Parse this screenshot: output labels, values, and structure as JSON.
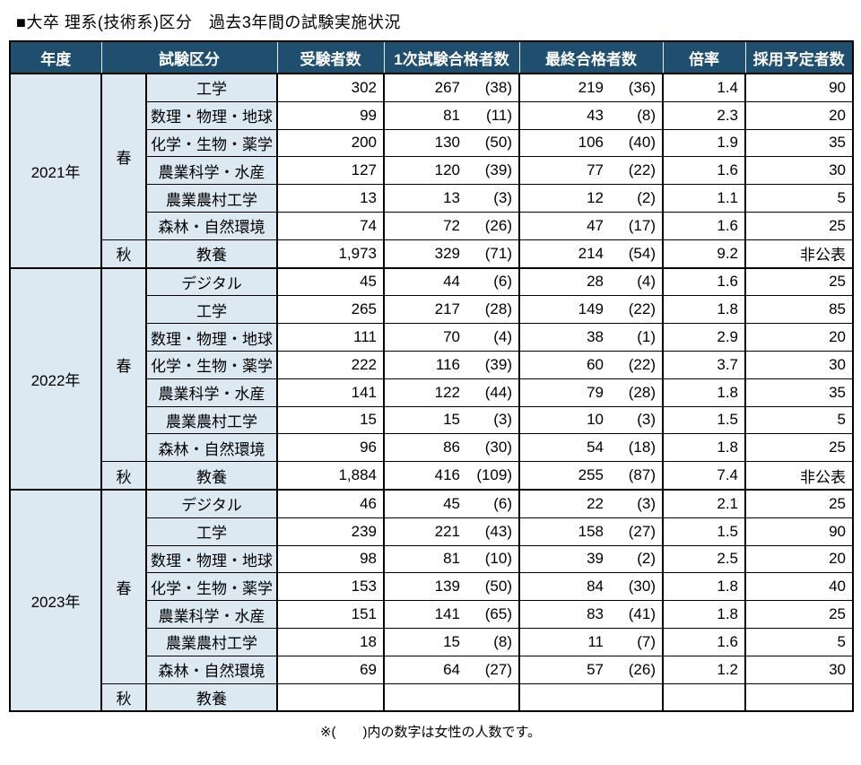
{
  "title": "■大卒 理系(技術系)区分　過去3年間の試験実施状況",
  "footnote": "※(　　)内の数字は女性の人数です。",
  "colors": {
    "header_bg": "#1F4E6E",
    "header_text": "#FFFFFF",
    "label_bg": "#DCE9F2",
    "border": "#000000"
  },
  "columns": [
    "年度",
    "試験区分",
    "受験者数",
    "1次試験合格者数",
    "最終合格者数",
    "倍率",
    "採用予定者数"
  ],
  "years": [
    {
      "year": "2021年",
      "blocks": [
        {
          "season": "春",
          "rows": [
            {
              "category": "工学",
              "applicants": "302",
              "first": "267",
              "first_f": "(38)",
              "final": "219",
              "final_f": "(36)",
              "ratio": "1.4",
              "planned": "90"
            },
            {
              "category": "数理・物理・地球",
              "applicants": "99",
              "first": "81",
              "first_f": "(11)",
              "final": "43",
              "final_f": "(8)",
              "ratio": "2.3",
              "planned": "20"
            },
            {
              "category": "化学・生物・薬学",
              "applicants": "200",
              "first": "130",
              "first_f": "(50)",
              "final": "106",
              "final_f": "(40)",
              "ratio": "1.9",
              "planned": "35"
            },
            {
              "category": "農業科学・水産",
              "applicants": "127",
              "first": "120",
              "first_f": "(39)",
              "final": "77",
              "final_f": "(22)",
              "ratio": "1.6",
              "planned": "30"
            },
            {
              "category": "農業農村工学",
              "applicants": "13",
              "first": "13",
              "first_f": "(3)",
              "final": "12",
              "final_f": "(2)",
              "ratio": "1.1",
              "planned": "5"
            },
            {
              "category": "森林・自然環境",
              "applicants": "74",
              "first": "72",
              "first_f": "(26)",
              "final": "47",
              "final_f": "(17)",
              "ratio": "1.6",
              "planned": "25"
            }
          ]
        },
        {
          "season": "秋",
          "rows": [
            {
              "category": "教養",
              "applicants": "1,973",
              "first": "329",
              "first_f": "(71)",
              "final": "214",
              "final_f": "(54)",
              "ratio": "9.2",
              "planned": "非公表"
            }
          ]
        }
      ]
    },
    {
      "year": "2022年",
      "blocks": [
        {
          "season": "春",
          "rows": [
            {
              "category": "デジタル",
              "applicants": "45",
              "first": "44",
              "first_f": "(6)",
              "final": "28",
              "final_f": "(4)",
              "ratio": "1.6",
              "planned": "25"
            },
            {
              "category": "工学",
              "applicants": "265",
              "first": "217",
              "first_f": "(28)",
              "final": "149",
              "final_f": "(22)",
              "ratio": "1.8",
              "planned": "85"
            },
            {
              "category": "数理・物理・地球",
              "applicants": "111",
              "first": "70",
              "first_f": "(4)",
              "final": "38",
              "final_f": "(1)",
              "ratio": "2.9",
              "planned": "20"
            },
            {
              "category": "化学・生物・薬学",
              "applicants": "222",
              "first": "116",
              "first_f": "(39)",
              "final": "60",
              "final_f": "(22)",
              "ratio": "3.7",
              "planned": "30"
            },
            {
              "category": "農業科学・水産",
              "applicants": "141",
              "first": "122",
              "first_f": "(44)",
              "final": "79",
              "final_f": "(28)",
              "ratio": "1.8",
              "planned": "35"
            },
            {
              "category": "農業農村工学",
              "applicants": "15",
              "first": "15",
              "first_f": "(3)",
              "final": "10",
              "final_f": "(3)",
              "ratio": "1.5",
              "planned": "5"
            },
            {
              "category": "森林・自然環境",
              "applicants": "96",
              "first": "86",
              "first_f": "(30)",
              "final": "54",
              "final_f": "(18)",
              "ratio": "1.8",
              "planned": "25"
            }
          ]
        },
        {
          "season": "秋",
          "rows": [
            {
              "category": "教養",
              "applicants": "1,884",
              "first": "416",
              "first_f": "(109)",
              "final": "255",
              "final_f": "(87)",
              "ratio": "7.4",
              "planned": "非公表"
            }
          ]
        }
      ]
    },
    {
      "year": "2023年",
      "blocks": [
        {
          "season": "春",
          "rows": [
            {
              "category": "デジタル",
              "applicants": "46",
              "first": "45",
              "first_f": "(6)",
              "final": "22",
              "final_f": "(3)",
              "ratio": "2.1",
              "planned": "25"
            },
            {
              "category": "工学",
              "applicants": "239",
              "first": "221",
              "first_f": "(43)",
              "final": "158",
              "final_f": "(27)",
              "ratio": "1.5",
              "planned": "90"
            },
            {
              "category": "数理・物理・地球",
              "applicants": "98",
              "first": "81",
              "first_f": "(10)",
              "final": "39",
              "final_f": "(2)",
              "ratio": "2.5",
              "planned": "20"
            },
            {
              "category": "化学・生物・薬学",
              "applicants": "153",
              "first": "139",
              "first_f": "(50)",
              "final": "84",
              "final_f": "(30)",
              "ratio": "1.8",
              "planned": "40"
            },
            {
              "category": "農業科学・水産",
              "applicants": "151",
              "first": "141",
              "first_f": "(65)",
              "final": "83",
              "final_f": "(41)",
              "ratio": "1.8",
              "planned": "25"
            },
            {
              "category": "農業農村工学",
              "applicants": "18",
              "first": "15",
              "first_f": "(8)",
              "final": "11",
              "final_f": "(7)",
              "ratio": "1.6",
              "planned": "5"
            },
            {
              "category": "森林・自然環境",
              "applicants": "69",
              "first": "64",
              "first_f": "(27)",
              "final": "57",
              "final_f": "(26)",
              "ratio": "1.2",
              "planned": "30"
            }
          ]
        },
        {
          "season": "秋",
          "rows": [
            {
              "category": "教養",
              "applicants": "",
              "first": "",
              "first_f": "",
              "final": "",
              "final_f": "",
              "ratio": "",
              "planned": ""
            }
          ]
        }
      ]
    }
  ]
}
